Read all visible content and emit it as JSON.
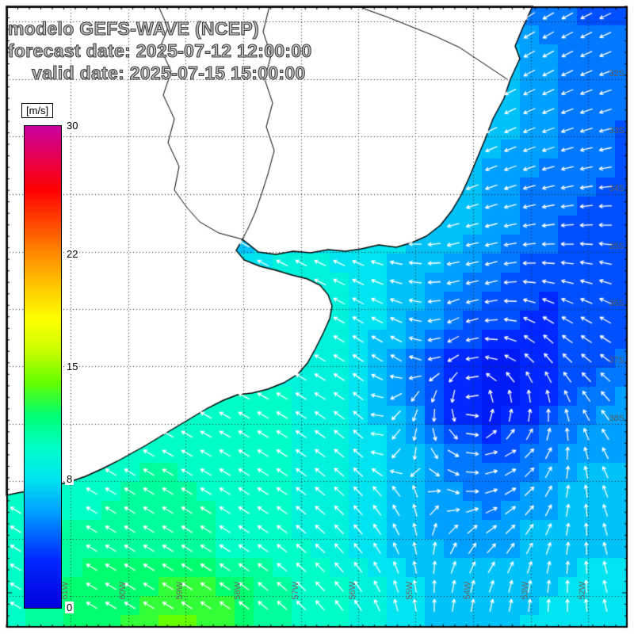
{
  "header": {
    "title_line1": "modelo GEFS-WAVE (NCEP)",
    "title_line2": "forecast date: 2025-07-12 12:00:00",
    "title_line3": "valid date: 2025-07-15 15:00:00"
  },
  "colorbar": {
    "unit_label": "[m/s]",
    "tick_labels": [
      "30",
      "22",
      "15",
      "8",
      "0"
    ],
    "min": 0,
    "max": 30,
    "stops": [
      [
        0,
        "#0000dc"
      ],
      [
        3,
        "#0028ff"
      ],
      [
        6,
        "#00a0ff"
      ],
      [
        8,
        "#00e4f0"
      ],
      [
        10,
        "#00ffc8"
      ],
      [
        12,
        "#00ff70"
      ],
      [
        14,
        "#64ff00"
      ],
      [
        16,
        "#c8ff00"
      ],
      [
        18,
        "#ffff00"
      ],
      [
        20,
        "#ffc800"
      ],
      [
        22,
        "#ff8c00"
      ],
      [
        24,
        "#ff4600"
      ],
      [
        26,
        "#ff0000"
      ],
      [
        28,
        "#e60050"
      ],
      [
        30,
        "#c800a0"
      ]
    ]
  },
  "map": {
    "lat_axis": {
      "labels": [
        "32S",
        "33S",
        "34S",
        "35S",
        "36S",
        "37S",
        "38S"
      ]
    },
    "lon_axis": {
      "labels": [
        "61W",
        "60W",
        "59W",
        "58W",
        "57W",
        "56W",
        "55W",
        "54W",
        "53W",
        "52W"
      ]
    }
  },
  "chart_data": {
    "type": "heatmap",
    "title": "modelo GEFS-WAVE (NCEP)",
    "model": "GEFS-WAVE (NCEP)",
    "forecast_date": "2025-07-12 12:00:00",
    "valid_date": "2025-07-15 15:00:00",
    "units": "m/s",
    "colorbar_range": [
      0,
      30
    ],
    "colorbar_ticks": [
      30,
      22,
      15,
      8,
      0
    ],
    "lat_ticks": [
      "32S",
      "33S",
      "34S",
      "35S",
      "36S",
      "37S",
      "38S"
    ],
    "lon_ticks": [
      "61W",
      "60W",
      "59W",
      "58W",
      "57W",
      "56W",
      "55W",
      "54W",
      "53W",
      "52W"
    ],
    "grid_deg": 1,
    "dir_convention": "degrees CCW from east, direction arrows point toward",
    "speed_grid": [
      [
        5,
        5,
        5,
        5,
        5,
        5,
        5,
        5,
        5,
        5,
        6,
        6,
        5,
        4,
        4
      ],
      [
        5,
        5,
        5,
        5,
        5,
        5,
        5,
        5,
        5,
        6,
        7,
        7,
        6,
        5,
        5
      ],
      [
        5,
        5,
        5,
        5,
        5,
        5,
        5,
        5,
        6,
        7,
        8,
        7,
        6,
        5,
        5
      ],
      [
        5,
        5,
        5,
        5,
        5,
        5,
        5,
        5,
        6,
        7,
        8,
        7,
        6,
        5,
        4
      ],
      [
        6,
        6,
        6,
        6,
        6,
        6,
        6,
        6,
        7,
        8,
        7,
        6,
        5,
        5,
        4
      ],
      [
        6,
        6,
        6,
        6,
        6,
        7,
        7,
        8,
        8,
        8,
        7,
        6,
        5,
        4,
        4
      ],
      [
        7,
        7,
        7,
        7,
        8,
        8,
        9,
        9,
        8,
        7,
        6,
        5,
        4,
        4,
        4
      ],
      [
        7,
        7,
        7,
        8,
        8,
        9,
        9,
        9,
        8,
        7,
        5,
        4,
        3,
        4,
        4
      ],
      [
        8,
        8,
        8,
        9,
        9,
        10,
        9,
        9,
        8,
        6,
        3,
        2,
        3,
        4,
        5
      ],
      [
        8,
        8,
        9,
        9,
        10,
        10,
        10,
        9,
        8,
        6,
        3,
        2,
        3,
        5,
        6
      ],
      [
        9,
        9,
        10,
        10,
        10,
        10,
        10,
        9,
        8,
        7,
        5,
        4,
        5,
        6,
        6
      ],
      [
        10,
        10,
        10,
        11,
        11,
        10,
        10,
        9,
        8,
        7,
        6,
        5,
        6,
        7,
        7
      ],
      [
        10,
        11,
        11,
        11,
        11,
        10,
        10,
        9,
        8,
        7,
        6,
        6,
        7,
        7,
        7
      ],
      [
        10,
        11,
        12,
        12,
        13,
        12,
        11,
        10,
        9,
        8,
        7,
        7,
        7,
        8,
        8
      ],
      [
        10,
        11,
        12,
        13,
        14,
        13,
        11,
        10,
        9,
        8,
        7,
        7,
        8,
        8,
        8
      ]
    ],
    "dir_grid_deg": [
      [
        145,
        145,
        145,
        145,
        145,
        145,
        145,
        145,
        205,
        210,
        212,
        214,
        212,
        208,
        205
      ],
      [
        145,
        145,
        145,
        145,
        145,
        145,
        145,
        145,
        202,
        208,
        212,
        212,
        210,
        206,
        202
      ],
      [
        145,
        145,
        145,
        145,
        145,
        145,
        145,
        148,
        198,
        205,
        210,
        208,
        205,
        200,
        198
      ],
      [
        145,
        145,
        145,
        145,
        145,
        145,
        148,
        152,
        190,
        200,
        206,
        204,
        200,
        196,
        192
      ],
      [
        145,
        145,
        145,
        145,
        145,
        147,
        150,
        155,
        170,
        192,
        202,
        200,
        196,
        190,
        185
      ],
      [
        145,
        145,
        145,
        145,
        147,
        150,
        152,
        155,
        162,
        178,
        195,
        194,
        188,
        182,
        176
      ],
      [
        145,
        145,
        145,
        147,
        149,
        151,
        153,
        154,
        156,
        168,
        190,
        195,
        175,
        168,
        162
      ],
      [
        145,
        145,
        146,
        148,
        150,
        152,
        153,
        152,
        150,
        160,
        205,
        185,
        150,
        152,
        150
      ],
      [
        145,
        146,
        147,
        149,
        151,
        152,
        152,
        150,
        146,
        150,
        215,
        163,
        127,
        140,
        145
      ],
      [
        146,
        147,
        148,
        150,
        151,
        152,
        150,
        147,
        142,
        240,
        270,
        90,
        90,
        120,
        138
      ],
      [
        147,
        148,
        149,
        150,
        151,
        150,
        148,
        144,
        138,
        250,
        325,
        17,
        53,
        105,
        130
      ],
      [
        148,
        149,
        150,
        150,
        150,
        148,
        146,
        141,
        134,
        120,
        340,
        20,
        50,
        95,
        125
      ],
      [
        149,
        150,
        150,
        150,
        149,
        147,
        144,
        138,
        130,
        112,
        60,
        40,
        62,
        90,
        120
      ],
      [
        150,
        150,
        150,
        149,
        147,
        145,
        141,
        135,
        125,
        105,
        78,
        70,
        80,
        92,
        115
      ],
      [
        150,
        150,
        149,
        148,
        146,
        143,
        139,
        132,
        120,
        98,
        85,
        82,
        88,
        95,
        112
      ]
    ]
  }
}
